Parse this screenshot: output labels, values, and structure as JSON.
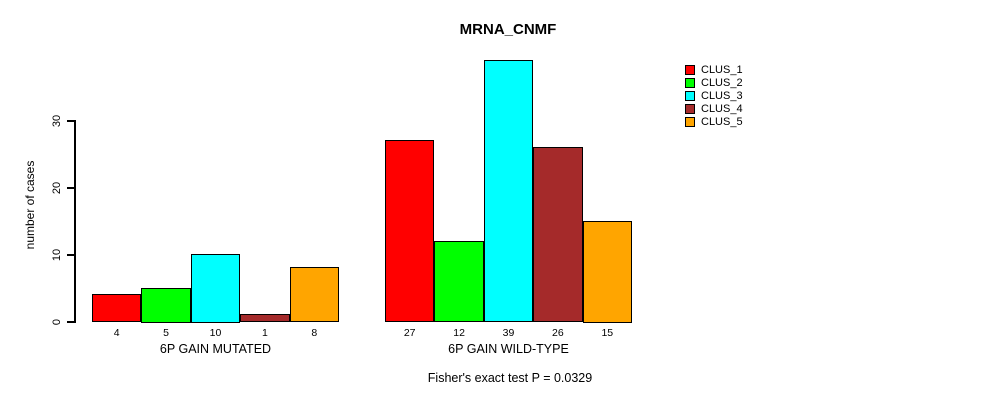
{
  "chart_data": {
    "type": "bar",
    "title": "MRNA_CNMF",
    "ylabel": "number of cases",
    "caption": "Fisher's exact test P = 0.0329",
    "categories": [
      "6P GAIN MUTATED",
      "6P GAIN WILD-TYPE"
    ],
    "series": [
      {
        "name": "CLUS_1",
        "color": "#FF0000",
        "values": [
          4,
          27
        ]
      },
      {
        "name": "CLUS_2",
        "color": "#00FF00",
        "values": [
          5,
          12
        ]
      },
      {
        "name": "CLUS_3",
        "color": "#00FFFF",
        "values": [
          10,
          39
        ]
      },
      {
        "name": "CLUS_4",
        "color": "#A52A2A",
        "values": [
          1,
          26
        ]
      },
      {
        "name": "CLUS_5",
        "color": "#FFA500",
        "values": [
          8,
          15
        ]
      }
    ],
    "yticks": [
      0,
      10,
      20,
      30
    ],
    "ylim": [
      0,
      30
    ],
    "bar_value_labels": true,
    "grid": false,
    "legend_position": "top-right"
  }
}
